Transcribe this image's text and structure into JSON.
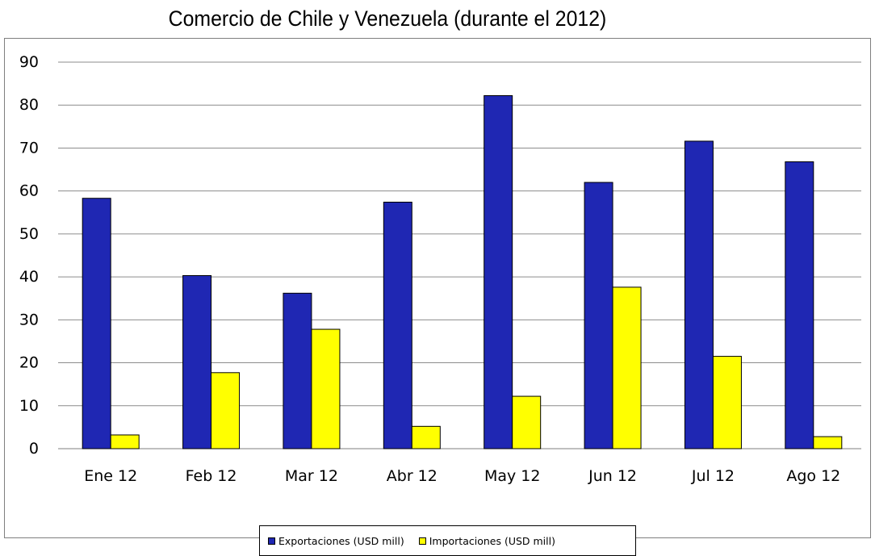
{
  "colors": {
    "exportaciones": "#1f27b3",
    "importaciones": "#ffff00",
    "grid": "#8c8c8c",
    "frame": "#7f7f7f"
  },
  "chart_data": {
    "type": "bar",
    "title": "Comercio de Chile y Venezuela (durante el 2012)",
    "xlabel": "",
    "ylabel": "",
    "categories": [
      "Ene 12",
      "Feb 12",
      "Mar 12",
      "Abr 12",
      "May 12",
      "Jun 12",
      "Jul 12",
      "Ago 12"
    ],
    "series": [
      {
        "name": "Exportaciones (USD mill)",
        "values": [
          58.3,
          40.3,
          36.2,
          57.4,
          82.2,
          62.0,
          71.6,
          66.8
        ]
      },
      {
        "name": "Importaciones (USD mill)",
        "values": [
          3.2,
          17.7,
          27.8,
          5.2,
          12.2,
          37.6,
          21.5,
          2.8
        ]
      }
    ],
    "ylim": [
      0,
      90
    ],
    "yticks": [
      "0",
      "10",
      "20",
      "30",
      "40",
      "50",
      "60",
      "70",
      "80",
      "90"
    ],
    "grid": true,
    "legend_position": "bottom"
  }
}
